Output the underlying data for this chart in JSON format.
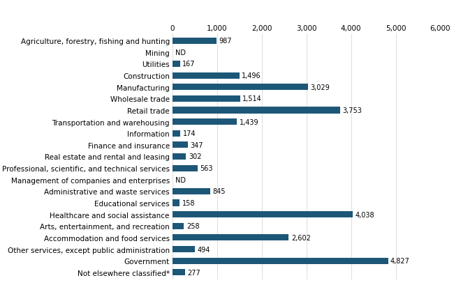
{
  "categories": [
    "Agriculture, forestry, fishing and hunting",
    "Mining",
    "Utilities",
    "Construction",
    "Manufacturing",
    "Wholesale trade",
    "Retail trade",
    "Transportation and warehousing",
    "Information",
    "Finance and insurance",
    "Real estate and rental and leasing",
    "Professional, scientific, and technical services",
    "Management of companies and enterprises",
    "Administrative and waste services",
    "Educational services",
    "Healthcare and social assistance",
    "Arts, entertainment, and recreation",
    "Accommodation and food services",
    "Other services, except public administration",
    "Government",
    "Not elsewhere classified*"
  ],
  "values": [
    987,
    null,
    167,
    1496,
    3029,
    1514,
    3753,
    1439,
    174,
    347,
    302,
    563,
    null,
    845,
    158,
    4038,
    258,
    2602,
    494,
    4827,
    277
  ],
  "labels": [
    "987",
    "ND",
    "167",
    "1,496",
    "3,029",
    "1,514",
    "3,753",
    "1,439",
    "174",
    "347",
    "302",
    "563",
    "ND",
    "845",
    "158",
    "4,038",
    "258",
    "2,602",
    "494",
    "4,827",
    "277"
  ],
  "bar_color": "#1d5778",
  "xlim": [
    0,
    6000
  ],
  "xticks": [
    0,
    1000,
    2000,
    3000,
    4000,
    5000,
    6000
  ],
  "xtick_labels": [
    "0",
    "1,000",
    "2,000",
    "3,000",
    "4,000",
    "5,000",
    "6,000"
  ],
  "figsize": [
    6.5,
    4.1
  ],
  "dpi": 100,
  "bar_height": 0.55,
  "label_fontsize": 7.0,
  "tick_fontsize": 7.5
}
